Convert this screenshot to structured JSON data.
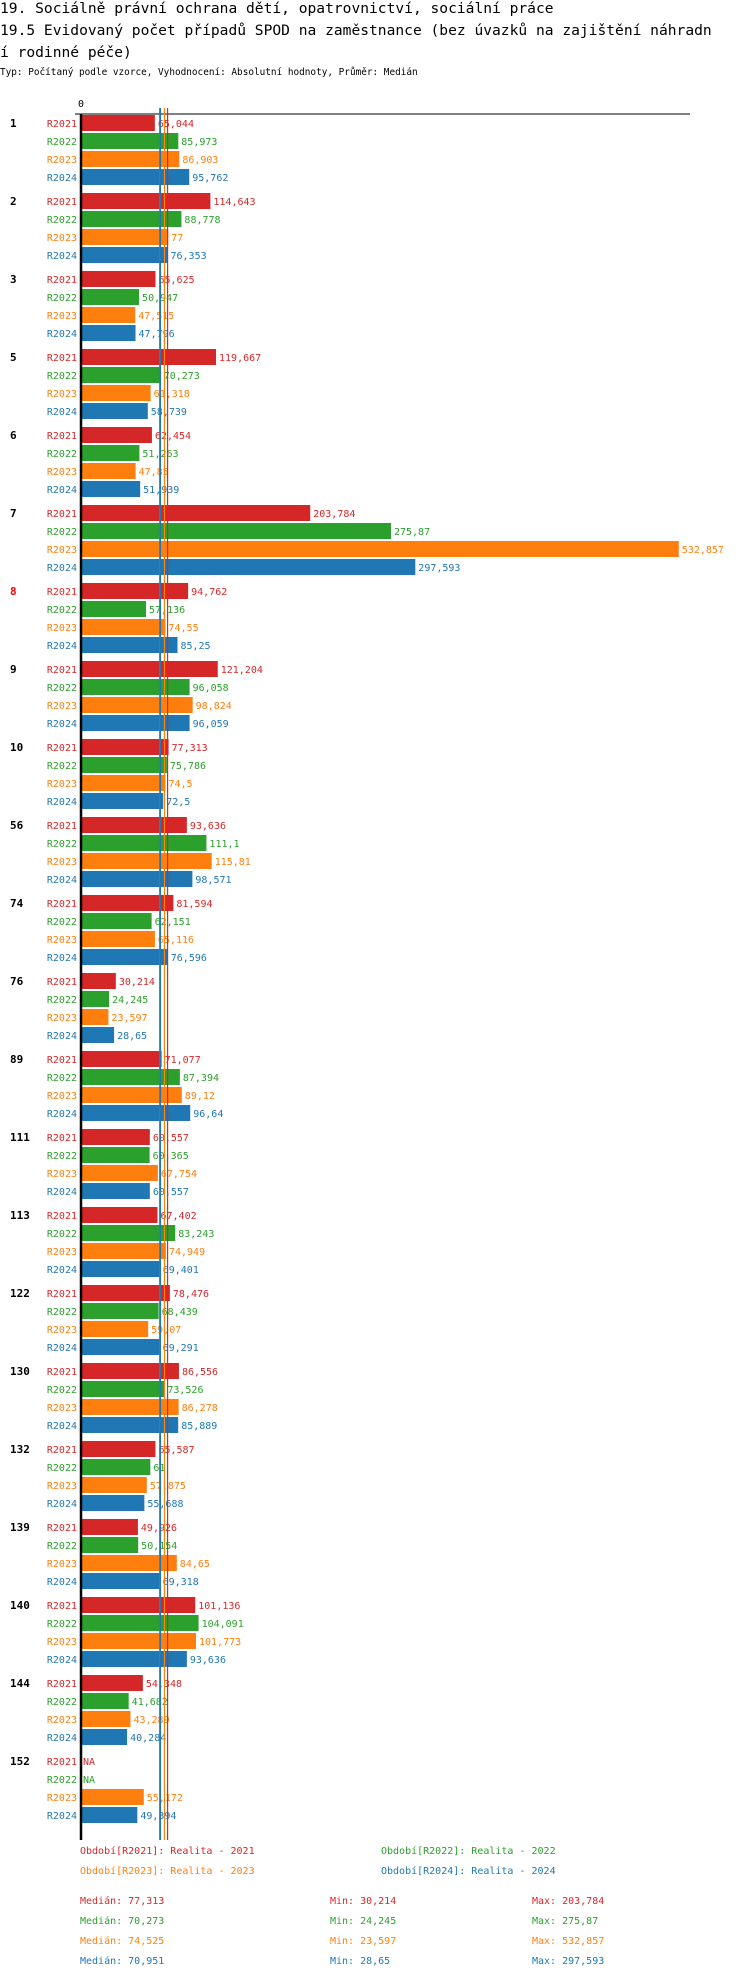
{
  "header": {
    "title_line1": "19. Sociálně právní ochrana dětí, opatrovnictví, sociální práce",
    "title_line2": "19.5 Evidovaný počet případů SPOD na zaměstnance (bez úvazků na zajištění náhradn",
    "title_line3": "í rodinné péče)",
    "subtitle": "Typ: Počítaný podle vzorce, Vyhodnocení: Absolutní hodnoty, Průměr: Medián"
  },
  "chart_data": {
    "type": "bar",
    "orientation": "horizontal",
    "title": "19.5 Evidovaný počet případů SPOD na zaměstnance (bez úvazků na zajištění náhradní rodinné péče)",
    "axis_zero_label": "0",
    "xlim": [
      0,
      532.857
    ],
    "highlighted_category": "8",
    "categories": [
      "1",
      "2",
      "3",
      "5",
      "6",
      "7",
      "8",
      "9",
      "10",
      "56",
      "74",
      "76",
      "89",
      "111",
      "113",
      "122",
      "130",
      "132",
      "139",
      "140",
      "144",
      "152"
    ],
    "series": [
      {
        "name": "R2021",
        "color": "#d62728",
        "values": [
          65.044,
          114.643,
          65.625,
          119.667,
          62.454,
          203.784,
          94.762,
          121.204,
          77.313,
          93.636,
          81.594,
          30.214,
          71.077,
          60.557,
          67.402,
          78.476,
          86.556,
          65.587,
          49.926,
          101.136,
          54.348,
          null
        ],
        "labels": [
          "65,044",
          "114,643",
          "65,625",
          "119,667",
          "62,454",
          "203,784",
          "94,762",
          "121,204",
          "77,313",
          "93,636",
          "81,594",
          "30,214",
          "71,077",
          "60,557",
          "67,402",
          "78,476",
          "86,556",
          "65,587",
          "49,926",
          "101,136",
          "54,348",
          "NA"
        ]
      },
      {
        "name": "R2022",
        "color": "#2ca02c",
        "values": [
          85.973,
          88.778,
          50.947,
          70.273,
          51.263,
          275.87,
          57.136,
          96.058,
          75.786,
          111.1,
          62.151,
          24.245,
          87.394,
          60.365,
          83.243,
          68.439,
          73.526,
          61,
          50.154,
          104.091,
          41.682,
          null
        ],
        "labels": [
          "85,973",
          "88,778",
          "50,947",
          "70,273",
          "51,263",
          "275,87",
          "57,136",
          "96,058",
          "75,786",
          "111,1",
          "62,151",
          "24,245",
          "87,394",
          "60,365",
          "83,243",
          "68,439",
          "73,526",
          "61",
          "50,154",
          "104,091",
          "41,682",
          "NA"
        ]
      },
      {
        "name": "R2023",
        "color": "#ff7f0e",
        "values": [
          86.903,
          77,
          47.515,
          61.318,
          47.85,
          532.857,
          74.55,
          98.824,
          74.5,
          115.81,
          65.116,
          23.597,
          89.12,
          67.754,
          74.949,
          59.07,
          86.278,
          57.875,
          84.65,
          101.773,
          43.289,
          55.172
        ],
        "labels": [
          "86,903",
          "77",
          "47,515",
          "61,318",
          "47,85",
          "532,857",
          "74,55",
          "98,824",
          "74,5",
          "115,81",
          "65,116",
          "23,597",
          "89,12",
          "67,754",
          "74,949",
          "59,07",
          "86,278",
          "57,875",
          "84,65",
          "101,773",
          "43,289",
          "55,172"
        ]
      },
      {
        "name": "R2024",
        "color": "#1f77b4",
        "values": [
          95.762,
          76.353,
          47.796,
          58.739,
          51.939,
          297.593,
          85.25,
          96.059,
          72.5,
          98.571,
          76.596,
          28.65,
          96.64,
          60.557,
          69.401,
          69.291,
          85.889,
          55.688,
          69.318,
          93.636,
          40.284,
          49.394
        ],
        "labels": [
          "95,762",
          "76,353",
          "47,796",
          "58,739",
          "51,939",
          "297,593",
          "85,25",
          "96,059",
          "72,5",
          "98,571",
          "76,596",
          "28,65",
          "96,64",
          "60,557",
          "69,401",
          "69,291",
          "85,889",
          "55,688",
          "69,318",
          "93,636",
          "40,284",
          "49,394"
        ]
      }
    ],
    "medians": [
      77.313,
      70.273,
      74.525,
      70.951
    ],
    "legend": [
      {
        "label": "Období[R2021]: Realita - 2021",
        "color": "#d62728"
      },
      {
        "label": "Období[R2022]: Realita - 2022",
        "color": "#2ca02c"
      },
      {
        "label": "Období[R2023]: Realita - 2023",
        "color": "#ff7f0e"
      },
      {
        "label": "Období[R2024]: Realita - 2024",
        "color": "#1f77b4"
      }
    ],
    "stats": [
      {
        "median": "Medián: 77,313",
        "min": "Min: 30,214",
        "max": "Max: 203,784",
        "color": "#d62728"
      },
      {
        "median": "Medián: 70,273",
        "min": "Min: 24,245",
        "max": "Max: 275,87",
        "color": "#2ca02c"
      },
      {
        "median": "Medián: 74,525",
        "min": "Min: 23,597",
        "max": "Max: 532,857",
        "color": "#ff7f0e"
      },
      {
        "median": "Medián: 70,951",
        "min": "Min: 28,65",
        "max": "Max: 297,593",
        "color": "#1f77b4"
      }
    ]
  }
}
